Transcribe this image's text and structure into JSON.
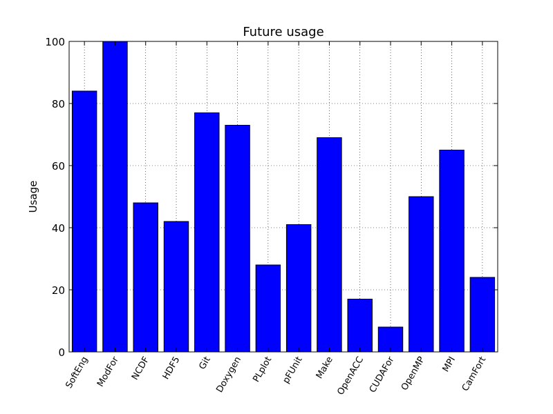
{
  "chart_data": {
    "type": "bar",
    "title": "Future usage",
    "xlabel": "",
    "ylabel": "Usage",
    "categories": [
      "SoftEng",
      "ModFor",
      "NCDF",
      "HDF5",
      "Git",
      "Doxygen",
      "PLplot",
      "pFUnit",
      "Make",
      "OpenACC",
      "CUDAFor",
      "OpenMP",
      "MPI",
      "CamFort"
    ],
    "values": [
      84,
      100,
      48,
      42,
      77,
      73,
      28,
      41,
      69,
      17,
      8,
      50,
      65,
      24
    ],
    "ylim": [
      0,
      100
    ],
    "yticks": [
      0,
      20,
      40,
      60,
      80,
      100
    ],
    "grid": true,
    "bar_color": "#0000ff",
    "edge_color": "#000000"
  }
}
